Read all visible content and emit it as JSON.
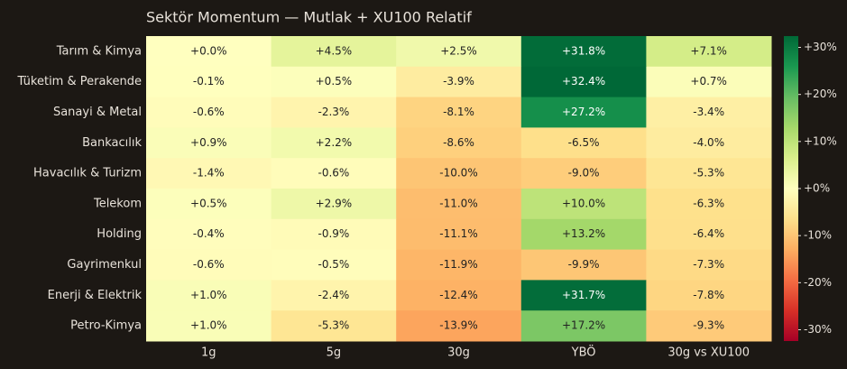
{
  "chart_data": {
    "type": "heatmap",
    "title": "Sektör Momentum — Mutlak + XU100 Relatif",
    "columns": [
      "1g",
      "5g",
      "30g",
      "YBÖ",
      "30g vs XU100"
    ],
    "rows": [
      "Tarım & Kimya",
      "Tüketim & Perakende",
      "Sanayi & Metal",
      "Bankacılık",
      "Havacılık & Turizm",
      "Telekom",
      "Holding",
      "Gayrimenkul",
      "Enerji & Elektrik",
      "Petro-Kimya"
    ],
    "values": [
      [
        0.0,
        4.5,
        2.5,
        31.8,
        7.1
      ],
      [
        -0.1,
        0.5,
        -3.9,
        32.4,
        0.7
      ],
      [
        -0.6,
        -2.3,
        -8.1,
        27.2,
        -3.4
      ],
      [
        0.9,
        2.2,
        -8.6,
        -6.5,
        -4.0
      ],
      [
        -1.4,
        -0.6,
        -10.0,
        -9.0,
        -5.3
      ],
      [
        0.5,
        2.9,
        -11.0,
        10.0,
        -6.3
      ],
      [
        -0.4,
        -0.9,
        -11.1,
        13.2,
        -6.4
      ],
      [
        -0.6,
        -0.5,
        -11.9,
        -9.9,
        -7.3
      ],
      [
        1.0,
        -2.4,
        -12.4,
        31.7,
        -7.8
      ],
      [
        1.0,
        -5.3,
        -13.9,
        17.2,
        -9.3
      ]
    ],
    "value_labels": [
      [
        "+0.0%",
        "+4.5%",
        "+2.5%",
        "+31.8%",
        "+7.1%"
      ],
      [
        "-0.1%",
        "+0.5%",
        "-3.9%",
        "+32.4%",
        "+0.7%"
      ],
      [
        "-0.6%",
        "-2.3%",
        "-8.1%",
        "+27.2%",
        "-3.4%"
      ],
      [
        "+0.9%",
        "+2.2%",
        "-8.6%",
        "-6.5%",
        "-4.0%"
      ],
      [
        "-1.4%",
        "-0.6%",
        "-10.0%",
        "-9.0%",
        "-5.3%"
      ],
      [
        "+0.5%",
        "+2.9%",
        "-11.0%",
        "+10.0%",
        "-6.3%"
      ],
      [
        "-0.4%",
        "-0.9%",
        "-11.1%",
        "+13.2%",
        "-6.4%"
      ],
      [
        "-0.6%",
        "-0.5%",
        "-11.9%",
        "-9.9%",
        "-7.3%"
      ],
      [
        "+1.0%",
        "-2.4%",
        "-12.4%",
        "+31.7%",
        "-7.8%"
      ],
      [
        "+1.0%",
        "-5.3%",
        "-13.9%",
        "+17.2%",
        "-9.3%"
      ]
    ],
    "colormap": "RdYlGn",
    "zlim": [
      -32.4,
      32.4
    ],
    "zticks": [
      {
        "value": -30,
        "label": "-30%"
      },
      {
        "value": -20,
        "label": "-20%"
      },
      {
        "value": -10,
        "label": "-10%"
      },
      {
        "value": 0,
        "label": "+0%"
      },
      {
        "value": 10,
        "label": "+10%"
      },
      {
        "value": 20,
        "label": "+20%"
      },
      {
        "value": 30,
        "label": "+30%"
      }
    ]
  }
}
